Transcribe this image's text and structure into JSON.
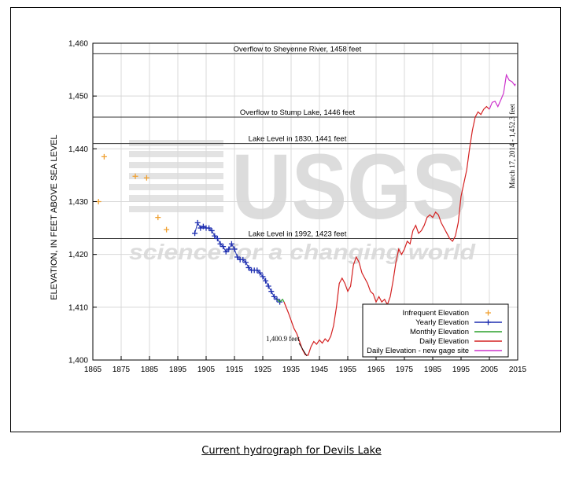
{
  "caption": "Current hydrograph for Devils Lake",
  "watermark": {
    "logo": "USGS",
    "tagline": "science for a changing world"
  },
  "chart_data": {
    "type": "line",
    "xlim": [
      1865,
      2015
    ],
    "ylim": [
      1400,
      1460
    ],
    "x_ticks": [
      1865,
      1875,
      1885,
      1895,
      1905,
      1915,
      1925,
      1935,
      1945,
      1955,
      1965,
      1975,
      1985,
      1995,
      2005,
      2015
    ],
    "y_ticks": [
      1400,
      1410,
      1420,
      1430,
      1440,
      1450,
      1460
    ],
    "x_tick_labels": [
      "1865",
      "1875",
      "1885",
      "1895",
      "1905",
      "1915",
      "1925",
      "1935",
      "1945",
      "1955",
      "1965",
      "1975",
      "1985",
      "1995",
      "2005",
      "2015"
    ],
    "y_tick_labels": [
      "1,400",
      "1,410",
      "1,420",
      "1,430",
      "1,440",
      "1,450",
      "1,460"
    ],
    "ylabel": "ELEVATION, IN FEET ABOVE SEA LEVEL",
    "xlabel": "",
    "grid": true,
    "legend_position": "bottom-right",
    "reference_lines": [
      {
        "y": 1458,
        "label": "Overflow to Sheyenne River, 1458 feet"
      },
      {
        "y": 1446,
        "label": "Overflow to Stump Lake, 1446 feet"
      },
      {
        "y": 1441,
        "label": "Lake Level in 1830, 1441 feet"
      },
      {
        "y": 1423,
        "label": "Lake Level in 1992, 1423 feet"
      }
    ],
    "annotations": [
      {
        "x": 1940,
        "y": 1400.9,
        "text": "1,400.9 feet"
      },
      {
        "x": 2014.2,
        "y": 1452.3,
        "text": "March 17, 2014 - 1,452.3 feet"
      }
    ],
    "series": [
      {
        "name": "Infrequent Elevation",
        "color": "#f0a030",
        "marker": "plus",
        "points": [
          [
            1867,
            1430
          ],
          [
            1869,
            1438.5
          ],
          [
            1880,
            1434.8
          ],
          [
            1884,
            1434.5
          ],
          [
            1888,
            1427
          ],
          [
            1891,
            1424.7
          ]
        ]
      },
      {
        "name": "Yearly Elevation",
        "color": "#1e2fb0",
        "marker": "plus",
        "points": [
          [
            1901,
            1424
          ],
          [
            1902,
            1426
          ],
          [
            1903,
            1425
          ],
          [
            1904,
            1425.3
          ],
          [
            1905,
            1425
          ],
          [
            1906,
            1425
          ],
          [
            1907,
            1424.5
          ],
          [
            1908,
            1423.5
          ],
          [
            1909,
            1423
          ],
          [
            1910,
            1422
          ],
          [
            1911,
            1421.5
          ],
          [
            1912,
            1420.5
          ],
          [
            1913,
            1421
          ],
          [
            1914,
            1422
          ],
          [
            1915,
            1421
          ],
          [
            1916,
            1419.5
          ],
          [
            1917,
            1419
          ],
          [
            1918,
            1419
          ],
          [
            1919,
            1418.5
          ],
          [
            1920,
            1417.5
          ],
          [
            1921,
            1417
          ],
          [
            1922,
            1417
          ],
          [
            1923,
            1417
          ],
          [
            1924,
            1416.5
          ],
          [
            1925,
            1415.8
          ],
          [
            1926,
            1415
          ],
          [
            1927,
            1414
          ],
          [
            1928,
            1413
          ],
          [
            1929,
            1412
          ],
          [
            1930,
            1411.5
          ],
          [
            1931,
            1411
          ]
        ]
      },
      {
        "name": "Monthly Elevation",
        "color": "#2ca02c",
        "marker": "line",
        "points": [
          [
            1930,
            1411.5
          ],
          [
            1931,
            1411
          ],
          [
            1932,
            1411.5
          ],
          [
            1932.5,
            1411
          ]
        ]
      },
      {
        "name": "Daily Elevation",
        "color": "#d42020",
        "marker": "line",
        "points": [
          [
            1932.5,
            1411
          ],
          [
            1934,
            1409
          ],
          [
            1935,
            1407.5
          ],
          [
            1936,
            1406
          ],
          [
            1937,
            1405
          ],
          [
            1938,
            1403.5
          ],
          [
            1939,
            1402
          ],
          [
            1940,
            1401
          ],
          [
            1941,
            1400.9
          ],
          [
            1942,
            1402.5
          ],
          [
            1943,
            1403.5
          ],
          [
            1944,
            1403
          ],
          [
            1945,
            1403.8
          ],
          [
            1946,
            1403.2
          ],
          [
            1947,
            1404
          ],
          [
            1948,
            1403.5
          ],
          [
            1949,
            1404.5
          ],
          [
            1950,
            1406.5
          ],
          [
            1951,
            1410
          ],
          [
            1952,
            1414.5
          ],
          [
            1953,
            1415.5
          ],
          [
            1954,
            1414.5
          ],
          [
            1955,
            1413
          ],
          [
            1956,
            1414
          ],
          [
            1957,
            1418
          ],
          [
            1958,
            1419.5
          ],
          [
            1959,
            1418.5
          ],
          [
            1960,
            1416.5
          ],
          [
            1961,
            1415.5
          ],
          [
            1962,
            1414.5
          ],
          [
            1963,
            1413
          ],
          [
            1964,
            1412.5
          ],
          [
            1965,
            1411
          ],
          [
            1966,
            1412
          ],
          [
            1967,
            1411
          ],
          [
            1968,
            1411.5
          ],
          [
            1969,
            1410.5
          ],
          [
            1970,
            1412
          ],
          [
            1971,
            1415
          ],
          [
            1972,
            1418.5
          ],
          [
            1973,
            1421
          ],
          [
            1974,
            1420
          ],
          [
            1975,
            1421
          ],
          [
            1976,
            1422.5
          ],
          [
            1977,
            1422
          ],
          [
            1978,
            1424.5
          ],
          [
            1979,
            1425.5
          ],
          [
            1980,
            1424
          ],
          [
            1981,
            1424.5
          ],
          [
            1982,
            1425.5
          ],
          [
            1983,
            1427
          ],
          [
            1984,
            1427.5
          ],
          [
            1985,
            1427
          ],
          [
            1986,
            1428
          ],
          [
            1987,
            1427.5
          ],
          [
            1988,
            1426
          ],
          [
            1989,
            1425
          ],
          [
            1990,
            1424
          ],
          [
            1991,
            1423
          ],
          [
            1992,
            1422.5
          ],
          [
            1993,
            1423.5
          ],
          [
            1994,
            1426
          ],
          [
            1995,
            1431
          ],
          [
            1996,
            1433.5
          ],
          [
            1997,
            1436
          ],
          [
            1998,
            1440
          ],
          [
            1999,
            1443.5
          ],
          [
            2000,
            1446
          ],
          [
            2001,
            1447
          ],
          [
            2002,
            1446.5
          ],
          [
            2003,
            1447.5
          ],
          [
            2004,
            1448
          ],
          [
            2005,
            1447.5
          ]
        ]
      },
      {
        "name": "Daily Elevation - new gage site",
        "color": "#cc33cc",
        "marker": "line",
        "points": [
          [
            2005,
            1447.5
          ],
          [
            2006,
            1448.8
          ],
          [
            2007,
            1449
          ],
          [
            2008,
            1448
          ],
          [
            2009,
            1449.2
          ],
          [
            2010,
            1450.5
          ],
          [
            2011,
            1454
          ],
          [
            2012,
            1453
          ],
          [
            2013,
            1452.7
          ],
          [
            2014,
            1452
          ],
          [
            2014.2,
            1452.3
          ]
        ]
      }
    ]
  }
}
